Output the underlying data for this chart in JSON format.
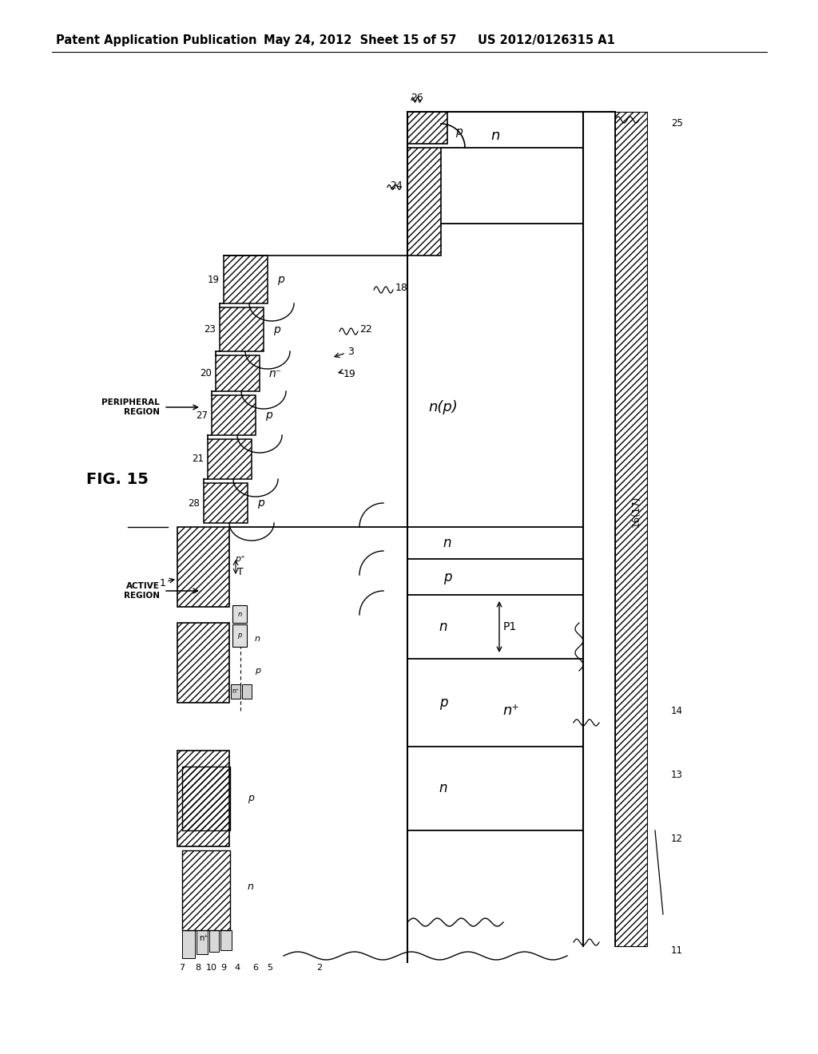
{
  "header_left": "Patent Application Publication",
  "header_center": "May 24, 2012  Sheet 15 of 57",
  "header_right": "US 2012/0126315 A1",
  "fig_label": "FIG. 15",
  "bg_color": "#ffffff",
  "lc": "#000000"
}
